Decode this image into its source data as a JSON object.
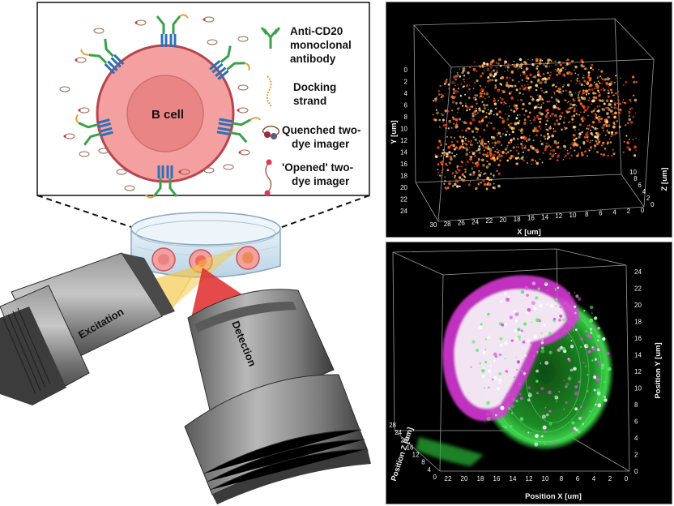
{
  "schematic": {
    "cell_label": "B cell",
    "legend": [
      {
        "id": "antibody",
        "lines": [
          "Anti-CD20",
          "monoclonal",
          "antibody"
        ]
      },
      {
        "id": "docking",
        "lines": [
          "Docking",
          "strand"
        ]
      },
      {
        "id": "quenched",
        "lines": [
          "Quenched two-",
          "dye imager"
        ]
      },
      {
        "id": "opened",
        "lines": [
          "'Opened' two-",
          "dye imager"
        ]
      }
    ],
    "objective_labels": {
      "excitation": "Excitation",
      "detection": "Detection"
    }
  },
  "top_plot": {
    "x_title": "X [um]",
    "y_title": "Y [um]",
    "z_title": "Z [um]",
    "x_ticks": [
      "30",
      "28",
      "26",
      "24",
      "22",
      "20",
      "18",
      "16",
      "14",
      "12",
      "10",
      "8",
      "6",
      "4",
      "2",
      "0"
    ],
    "y_ticks": [
      "0",
      "2",
      "4",
      "6",
      "8",
      "10",
      "12",
      "14",
      "16",
      "18",
      "20",
      "22",
      "24"
    ],
    "z_ticks": [
      "0",
      "2",
      "4",
      "6",
      "8",
      "10"
    ]
  },
  "bottom_plot": {
    "x_title": "Position X [um]",
    "y_title": "Position Y [um]",
    "z_title": "Position Z [um]",
    "x_ticks": [
      "22",
      "20",
      "18",
      "16",
      "14",
      "12",
      "10",
      "8",
      "6",
      "4",
      "2",
      "0"
    ],
    "y_ticks": [
      "0",
      "2",
      "4",
      "6",
      "8",
      "10",
      "12",
      "14",
      "16",
      "18",
      "20",
      "22",
      "24"
    ],
    "z_ticks": [
      "0",
      "4",
      "8",
      "12",
      "16",
      "20",
      "24",
      "28"
    ]
  },
  "colors": {
    "cell_fill": "#f29a9a",
    "nucleus_fill": "#e77f7f",
    "antibody": "#3aa14a",
    "receptor": "#2f6fb6",
    "strand": "#e0a43a",
    "imager_dot": "#cc2b3b",
    "green_signal": "#28c43a",
    "magenta_signal": "#e23ae0"
  }
}
